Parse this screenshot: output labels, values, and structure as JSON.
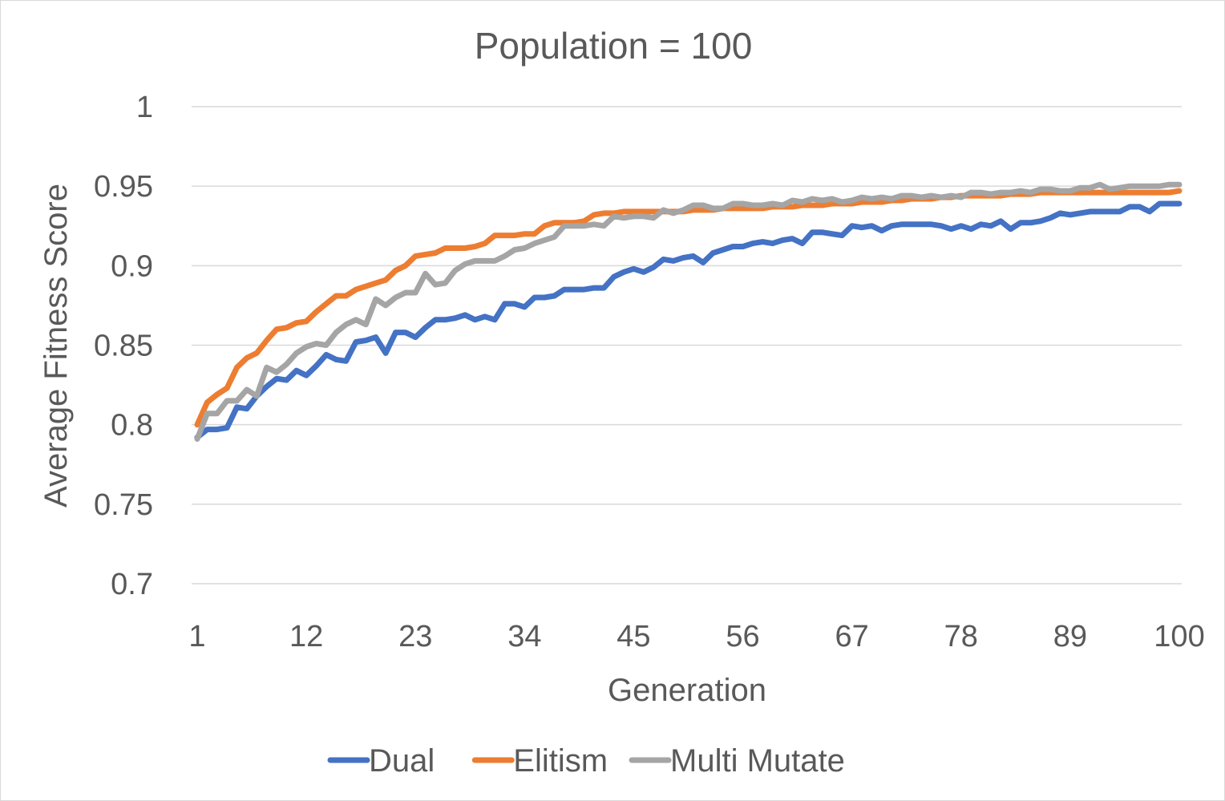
{
  "chart_data": {
    "type": "line",
    "title": "Population = 100",
    "xlabel": "Generation",
    "ylabel": "Average Fitness Score",
    "x_range": [
      1,
      100
    ],
    "x_tick_labels": [
      "1",
      "12",
      "23",
      "34",
      "45",
      "56",
      "67",
      "78",
      "89",
      "100"
    ],
    "ylim": [
      0.7,
      1.0
    ],
    "y_ticks": [
      0.7,
      0.75,
      0.8,
      0.85,
      0.9,
      0.95,
      1
    ],
    "y_tick_labels": [
      "0.7",
      "0.75",
      "0.8",
      "0.85",
      "0.9",
      "0.95",
      "1"
    ],
    "grid": true,
    "legend_position": "bottom",
    "series": [
      {
        "name": "Dual",
        "color": "#4472c4",
        "values": [
          0.792,
          0.797,
          0.797,
          0.798,
          0.811,
          0.81,
          0.818,
          0.824,
          0.829,
          0.828,
          0.834,
          0.831,
          0.837,
          0.844,
          0.841,
          0.84,
          0.852,
          0.853,
          0.855,
          0.845,
          0.858,
          0.858,
          0.855,
          0.861,
          0.866,
          0.866,
          0.867,
          0.869,
          0.866,
          0.868,
          0.866,
          0.876,
          0.876,
          0.874,
          0.88,
          0.88,
          0.881,
          0.885,
          0.885,
          0.885,
          0.886,
          0.886,
          0.893,
          0.896,
          0.898,
          0.896,
          0.899,
          0.904,
          0.903,
          0.905,
          0.906,
          0.902,
          0.908,
          0.91,
          0.912,
          0.912,
          0.914,
          0.915,
          0.914,
          0.916,
          0.917,
          0.914,
          0.921,
          0.921,
          0.92,
          0.919,
          0.925,
          0.924,
          0.925,
          0.922,
          0.925,
          0.926,
          0.926,
          0.926,
          0.926,
          0.925,
          0.923,
          0.925,
          0.923,
          0.926,
          0.925,
          0.928,
          0.923,
          0.927,
          0.927,
          0.928,
          0.93,
          0.933,
          0.932,
          0.933,
          0.934,
          0.934,
          0.934,
          0.934,
          0.937,
          0.937,
          0.934,
          0.939,
          0.939,
          0.939
        ]
      },
      {
        "name": "Elitism",
        "color": "#ed7d31",
        "values": [
          0.8,
          0.814,
          0.819,
          0.823,
          0.836,
          0.842,
          0.845,
          0.853,
          0.86,
          0.861,
          0.864,
          0.865,
          0.871,
          0.876,
          0.881,
          0.881,
          0.885,
          0.887,
          0.889,
          0.891,
          0.897,
          0.9,
          0.906,
          0.907,
          0.908,
          0.911,
          0.911,
          0.911,
          0.912,
          0.914,
          0.919,
          0.919,
          0.919,
          0.92,
          0.92,
          0.925,
          0.927,
          0.927,
          0.927,
          0.928,
          0.932,
          0.933,
          0.933,
          0.934,
          0.934,
          0.934,
          0.934,
          0.934,
          0.934,
          0.934,
          0.935,
          0.935,
          0.935,
          0.936,
          0.936,
          0.936,
          0.936,
          0.936,
          0.937,
          0.937,
          0.937,
          0.938,
          0.938,
          0.938,
          0.939,
          0.939,
          0.939,
          0.94,
          0.94,
          0.94,
          0.941,
          0.941,
          0.942,
          0.942,
          0.942,
          0.943,
          0.943,
          0.944,
          0.944,
          0.944,
          0.944,
          0.944,
          0.945,
          0.945,
          0.945,
          0.946,
          0.946,
          0.946,
          0.946,
          0.946,
          0.946,
          0.946,
          0.946,
          0.946,
          0.946,
          0.946,
          0.946,
          0.946,
          0.946,
          0.947
        ]
      },
      {
        "name": "Multi Mutate",
        "color": "#a5a5a5",
        "values": [
          0.791,
          0.807,
          0.807,
          0.815,
          0.815,
          0.822,
          0.818,
          0.836,
          0.833,
          0.838,
          0.845,
          0.849,
          0.851,
          0.85,
          0.858,
          0.863,
          0.866,
          0.863,
          0.879,
          0.875,
          0.88,
          0.883,
          0.883,
          0.895,
          0.888,
          0.889,
          0.897,
          0.901,
          0.903,
          0.903,
          0.903,
          0.906,
          0.91,
          0.911,
          0.914,
          0.916,
          0.918,
          0.925,
          0.925,
          0.925,
          0.926,
          0.925,
          0.931,
          0.93,
          0.931,
          0.931,
          0.93,
          0.935,
          0.933,
          0.935,
          0.938,
          0.938,
          0.936,
          0.936,
          0.939,
          0.939,
          0.938,
          0.938,
          0.939,
          0.938,
          0.941,
          0.94,
          0.942,
          0.941,
          0.942,
          0.94,
          0.941,
          0.943,
          0.942,
          0.943,
          0.942,
          0.944,
          0.944,
          0.943,
          0.944,
          0.943,
          0.944,
          0.943,
          0.946,
          0.946,
          0.945,
          0.946,
          0.946,
          0.947,
          0.946,
          0.948,
          0.948,
          0.947,
          0.947,
          0.949,
          0.949,
          0.951,
          0.948,
          0.949,
          0.95,
          0.95,
          0.95,
          0.95,
          0.951,
          0.951
        ]
      }
    ]
  }
}
